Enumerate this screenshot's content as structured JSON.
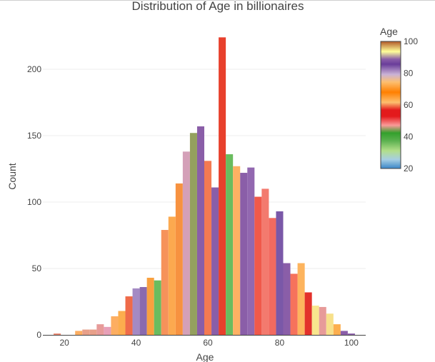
{
  "chart_data": {
    "type": "bar",
    "title": "Distribution of Age in billionaires",
    "xlabel": "Age",
    "ylabel": "Count",
    "xlim": [
      14,
      104
    ],
    "ylim": [
      0,
      236
    ],
    "xticks": [
      20,
      40,
      60,
      80,
      100
    ],
    "yticks": [
      0,
      50,
      100,
      150,
      200
    ],
    "grid": true,
    "bin_width": 2,
    "bins": [
      {
        "x": 18,
        "value": 1,
        "color": "#e8826b"
      },
      {
        "x": 20,
        "value": 0,
        "color": "#e8826b"
      },
      {
        "x": 22,
        "value": 0,
        "color": "#e8826b"
      },
      {
        "x": 24,
        "value": 3,
        "color": "#fdae61"
      },
      {
        "x": 26,
        "value": 4,
        "color": "#e8a08a"
      },
      {
        "x": 28,
        "value": 4,
        "color": "#e8a08a"
      },
      {
        "x": 30,
        "value": 8,
        "color": "#e79b99"
      },
      {
        "x": 32,
        "value": 6,
        "color": "#e7a0b8"
      },
      {
        "x": 34,
        "value": 14,
        "color": "#fdae61"
      },
      {
        "x": 36,
        "value": 18,
        "color": "#fcad4e"
      },
      {
        "x": 38,
        "value": 29,
        "color": "#ef6b4a"
      },
      {
        "x": 40,
        "value": 35,
        "color": "#a48ac4"
      },
      {
        "x": 42,
        "value": 36,
        "color": "#8a6aae"
      },
      {
        "x": 44,
        "value": 43,
        "color": "#f9a03f"
      },
      {
        "x": 46,
        "value": 41,
        "color": "#6abc5f"
      },
      {
        "x": 48,
        "value": 79,
        "color": "#f6925a"
      },
      {
        "x": 50,
        "value": 89,
        "color": "#fca94f"
      },
      {
        "x": 52,
        "value": 114,
        "color": "#f79240"
      },
      {
        "x": 54,
        "value": 138,
        "color": "#d4a0b8"
      },
      {
        "x": 56,
        "value": 152,
        "color": "#94a05e"
      },
      {
        "x": 58,
        "value": 157,
        "color": "#8a5ea8"
      },
      {
        "x": 60,
        "value": 131,
        "color": "#f47a52"
      },
      {
        "x": 62,
        "value": 111,
        "color": "#8a5ea8"
      },
      {
        "x": 64,
        "value": 224,
        "color": "#e8402c"
      },
      {
        "x": 66,
        "value": 136,
        "color": "#6abc5f"
      },
      {
        "x": 68,
        "value": 127,
        "color": "#fdb163"
      },
      {
        "x": 70,
        "value": 122,
        "color": "#8a5ea8"
      },
      {
        "x": 72,
        "value": 126,
        "color": "#9268b0"
      },
      {
        "x": 74,
        "value": 104,
        "color": "#f0594a"
      },
      {
        "x": 76,
        "value": 110,
        "color": "#f37a6e"
      },
      {
        "x": 78,
        "value": 88,
        "color": "#f26a5f"
      },
      {
        "x": 80,
        "value": 93,
        "color": "#7a58a8"
      },
      {
        "x": 82,
        "value": 54,
        "color": "#8a5ea8"
      },
      {
        "x": 84,
        "value": 46,
        "color": "#f6725c"
      },
      {
        "x": 86,
        "value": 54,
        "color": "#fdb45e"
      },
      {
        "x": 88,
        "value": 32,
        "color": "#e3302b"
      },
      {
        "x": 90,
        "value": 22,
        "color": "#f8e68e"
      },
      {
        "x": 92,
        "value": 21,
        "color": "#e79b99"
      },
      {
        "x": 94,
        "value": 16,
        "color": "#f7e08a"
      },
      {
        "x": 96,
        "value": 8,
        "color": "#fcae4e"
      },
      {
        "x": 98,
        "value": 3,
        "color": "#8a5ea8"
      },
      {
        "x": 100,
        "value": 1,
        "color": "#8a5ea8"
      }
    ],
    "colorbar": {
      "title": "Age",
      "range": [
        20,
        100
      ],
      "ticks": [
        20,
        40,
        60,
        80,
        100
      ],
      "stops": [
        {
          "v": 0.0,
          "color": "#3a86c8"
        },
        {
          "v": 0.07,
          "color": "#a6cee3"
        },
        {
          "v": 0.14,
          "color": "#b2df8a"
        },
        {
          "v": 0.22,
          "color": "#5ab04e"
        },
        {
          "v": 0.28,
          "color": "#33a02c"
        },
        {
          "v": 0.34,
          "color": "#fb9a99"
        },
        {
          "v": 0.41,
          "color": "#e31a1c"
        },
        {
          "v": 0.46,
          "color": "#e31a1c"
        },
        {
          "v": 0.52,
          "color": "#fdbf6f"
        },
        {
          "v": 0.6,
          "color": "#ff7f00"
        },
        {
          "v": 0.68,
          "color": "#fdbf6f"
        },
        {
          "v": 0.74,
          "color": "#cab2d6"
        },
        {
          "v": 0.82,
          "color": "#6a3d9a"
        },
        {
          "v": 0.86,
          "color": "#8a5ea8"
        },
        {
          "v": 0.92,
          "color": "#ffff99"
        },
        {
          "v": 1.0,
          "color": "#b15928"
        }
      ]
    }
  }
}
